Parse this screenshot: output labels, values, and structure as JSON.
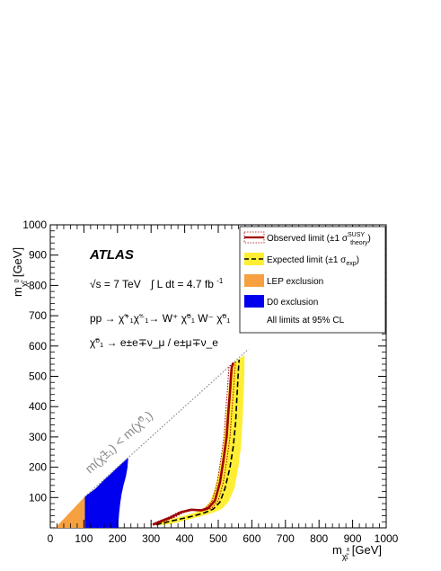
{
  "chart_data": {
    "type": "line",
    "xlabel": {
      "main": "m",
      "sub": "χ̃",
      "sup": "±",
      "subsub": "1",
      "unit": "[GeV]"
    },
    "ylabel": {
      "main": "m",
      "sub": "χ̃",
      "sup": "0",
      "subsub": "1",
      "unit": "[GeV]"
    },
    "xlim": [
      0,
      1000
    ],
    "ylim": [
      0,
      1000
    ],
    "xticks": [
      "0",
      "100",
      "200",
      "300",
      "400",
      "500",
      "600",
      "700",
      "800",
      "900",
      "1000"
    ],
    "yticks": [
      "100",
      "200",
      "300",
      "400",
      "500",
      "600",
      "700",
      "800",
      "900",
      "1000"
    ],
    "xtick_values": [
      0,
      100,
      200,
      300,
      400,
      500,
      600,
      700,
      800,
      900,
      1000
    ],
    "ytick_values": [
      100,
      200,
      300,
      400,
      500,
      600,
      700,
      800,
      900,
      1000
    ],
    "grid": false,
    "legend_position": "top-right",
    "annotations": {
      "experiment": "ATLAS",
      "energy": "√s = 7 TeV",
      "lumi_prefix": "∫ L dt = 4.7 fb",
      "lumi_exp": "-1",
      "process": "pp → χ̃⁺₁χ̃⁻₁→ W⁺ χ̃⁰₁ W⁻ χ̃⁰₁",
      "decay": "χ̃⁰₁ → e±e∓ν_μ / e±μ∓ν_e",
      "diagonal_label": "m(χ̃±₁) < m(χ̃⁰₁)",
      "cl_note": "All limits at 95% CL"
    },
    "legend": [
      {
        "label": "Observed limit (±1 σ",
        "sup": "SUSY",
        "sub": "theory",
        "tail": ")",
        "color": "#a00000",
        "style": "solid"
      },
      {
        "label": "Expected limit (±1 σ",
        "sub": "exp",
        "tail": ")",
        "color": "#000000",
        "band_color": "#ffee33",
        "style": "dashed"
      },
      {
        "label": "LEP exclusion",
        "color": "#f7a040",
        "style": "fill"
      },
      {
        "label": "D0 exclusion",
        "color": "#0000ee",
        "style": "fill"
      }
    ],
    "series": {
      "observed": {
        "x": [
          305,
          330,
          360,
          390,
          420,
          450,
          470,
          490,
          505,
          515,
          525,
          530,
          535,
          538,
          540,
          545
        ],
        "y": [
          10,
          22,
          35,
          52,
          60,
          58,
          65,
          90,
          150,
          220,
          300,
          380,
          450,
          500,
          530,
          545
        ]
      },
      "observed_up": {
        "x": [
          315,
          340,
          370,
          400,
          430,
          460,
          480,
          500,
          515,
          525,
          535,
          540,
          545,
          548,
          550,
          552
        ],
        "y": [
          10,
          22,
          35,
          52,
          60,
          58,
          65,
          90,
          150,
          220,
          300,
          380,
          450,
          500,
          530,
          552
        ]
      },
      "observed_down": {
        "x": [
          298,
          322,
          352,
          382,
          412,
          442,
          462,
          482,
          497,
          507,
          517,
          522,
          527,
          530,
          532,
          537
        ],
        "y": [
          10,
          22,
          35,
          52,
          60,
          58,
          65,
          90,
          150,
          220,
          300,
          380,
          450,
          500,
          530,
          537
        ]
      },
      "expected": {
        "x": [
          315,
          350,
          390,
          430,
          460,
          485,
          505,
          520,
          535,
          545,
          552,
          555,
          558,
          560,
          562
        ],
        "y": [
          10,
          20,
          30,
          40,
          50,
          62,
          85,
          130,
          200,
          270,
          350,
          420,
          480,
          520,
          555
        ]
      },
      "band_upper": {
        "x": [
          345,
          385,
          420,
          455,
          485,
          510,
          530,
          548,
          560,
          568,
          572,
          575,
          577,
          578,
          578
        ],
        "y": [
          10,
          20,
          30,
          40,
          50,
          62,
          85,
          130,
          200,
          270,
          350,
          420,
          480,
          520,
          570
        ]
      },
      "band_lower": {
        "x": [
          300,
          330,
          365,
          400,
          430,
          455,
          475,
          490,
          505,
          515,
          522,
          528,
          532,
          535,
          540
        ],
        "y": [
          10,
          20,
          30,
          40,
          50,
          62,
          85,
          130,
          200,
          270,
          350,
          420,
          480,
          520,
          540
        ]
      },
      "lep": {
        "x": [
          15,
          103,
          103
        ],
        "y": [
          0,
          0,
          103
        ]
      },
      "d0": {
        "x": [
          103,
          103,
          135,
          160,
          182,
          198,
          212,
          224,
          232,
          230,
          225,
          218,
          212,
          208,
          205,
          203,
          203
        ],
        "y": [
          0,
          103,
          130,
          158,
          180,
          198,
          212,
          224,
          232,
          200,
          170,
          140,
          110,
          80,
          50,
          20,
          0
        ]
      },
      "diagonal": {
        "x": [
          103,
          590
        ],
        "y": [
          103,
          590
        ]
      }
    }
  }
}
